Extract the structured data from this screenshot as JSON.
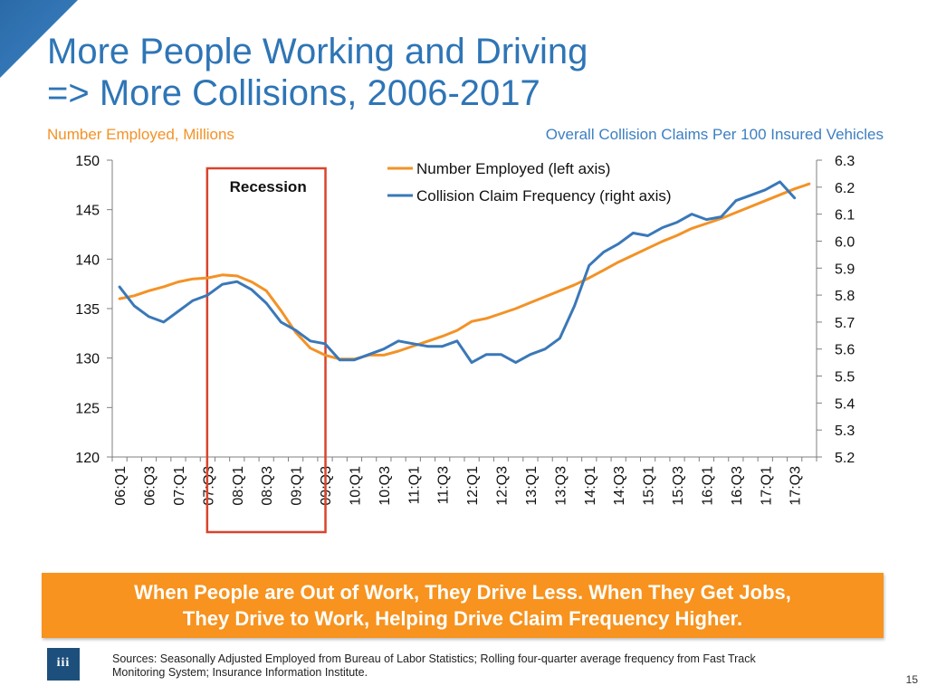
{
  "header": {
    "title_line1": "More People Working and Driving",
    "title_line2": "=> More Collisions, 2006-2017"
  },
  "axis_captions": {
    "left": "Number Employed, Millions",
    "right": "Overall Collision Claims Per 100 Insured Vehicles"
  },
  "colors": {
    "title": "#2e75b6",
    "employed": "#f39226",
    "frequency": "#3a78b8",
    "recession_box": "#d9442b",
    "banner": "#f7931e",
    "logo": "#1d4f7c"
  },
  "chart_data": {
    "type": "line",
    "x_tick_labels": [
      "06:Q1",
      "06:Q3",
      "07:Q1",
      "07:Q3",
      "08:Q1",
      "08:Q3",
      "09:Q1",
      "09:Q3",
      "10:Q1",
      "10:Q3",
      "11:Q1",
      "11:Q3",
      "12:Q1",
      "12:Q3",
      "13:Q1",
      "13:Q3",
      "14:Q1",
      "14:Q3",
      "15:Q1",
      "15:Q3",
      "16:Q1",
      "16:Q3",
      "17:Q1",
      "17:Q3"
    ],
    "x": [
      "06:Q1",
      "06:Q2",
      "06:Q3",
      "06:Q4",
      "07:Q1",
      "07:Q2",
      "07:Q3",
      "07:Q4",
      "08:Q1",
      "08:Q2",
      "08:Q3",
      "08:Q4",
      "09:Q1",
      "09:Q2",
      "09:Q3",
      "09:Q4",
      "10:Q1",
      "10:Q2",
      "10:Q3",
      "10:Q4",
      "11:Q1",
      "11:Q2",
      "11:Q3",
      "11:Q4",
      "12:Q1",
      "12:Q2",
      "12:Q3",
      "12:Q4",
      "13:Q1",
      "13:Q2",
      "13:Q3",
      "13:Q4",
      "14:Q1",
      "14:Q2",
      "14:Q3",
      "14:Q4",
      "15:Q1",
      "15:Q2",
      "15:Q3",
      "15:Q4",
      "16:Q1",
      "16:Q2",
      "16:Q3",
      "16:Q4",
      "17:Q1",
      "17:Q2",
      "17:Q3",
      "17:Q4"
    ],
    "series": [
      {
        "name": "Number Employed (left axis)",
        "axis": "left",
        "values": [
          136.0,
          136.3,
          136.8,
          137.2,
          137.7,
          138.0,
          138.1,
          138.4,
          138.3,
          137.7,
          136.8,
          134.8,
          132.6,
          131.0,
          130.3,
          129.9,
          129.9,
          130.3,
          130.3,
          130.7,
          131.2,
          131.7,
          132.2,
          132.8,
          133.7,
          134.0,
          134.5,
          135.0,
          135.6,
          136.2,
          136.8,
          137.4,
          138.1,
          138.9,
          139.7,
          140.4,
          141.1,
          141.8,
          142.4,
          143.1,
          143.6,
          144.1,
          144.7,
          145.3,
          145.9,
          146.5,
          147.1,
          147.6
        ]
      },
      {
        "name": "Collision Claim Frequency (right axis)",
        "axis": "right",
        "values": [
          5.83,
          5.76,
          5.72,
          5.7,
          5.74,
          5.78,
          5.8,
          5.84,
          5.85,
          5.82,
          5.77,
          5.7,
          5.67,
          5.63,
          5.62,
          5.56,
          5.56,
          5.58,
          5.6,
          5.63,
          5.62,
          5.61,
          5.61,
          5.63,
          5.55,
          5.58,
          5.58,
          5.55,
          5.58,
          5.6,
          5.64,
          5.76,
          5.91,
          5.96,
          5.99,
          6.03,
          6.02,
          6.05,
          6.07,
          6.1,
          6.08,
          6.09,
          6.15,
          6.17,
          6.19,
          6.22,
          6.16,
          null
        ]
      }
    ],
    "left_axis": {
      "ylim": [
        120,
        150
      ],
      "ticks": [
        "120",
        "125",
        "130",
        "135",
        "140",
        "145",
        "150"
      ]
    },
    "right_axis": {
      "ylim": [
        5.2,
        6.3
      ],
      "ticks": [
        "5.2",
        "5.3",
        "5.4",
        "5.5",
        "5.6",
        "5.7",
        "5.8",
        "5.9",
        "6.0",
        "6.1",
        "6.2",
        "6.3"
      ]
    },
    "annotation": {
      "label": "Recession",
      "from": "07:Q3",
      "to": "09:Q3"
    },
    "legend_placement": "top-center",
    "grid": false
  },
  "banner": {
    "line1": "When People are Out of Work, They Drive Less. When They Get Jobs,",
    "line2": "They Drive to Work, Helping Drive Claim Frequency Higher."
  },
  "footer": {
    "logo_text": "iii",
    "sources_line1": "Sources: Seasonally Adjusted Employed from Bureau of Labor Statistics; Rolling four-quarter average frequency from Fast Track",
    "sources_line2": "Monitoring System; Insurance Information Institute.",
    "page_number": "15"
  }
}
